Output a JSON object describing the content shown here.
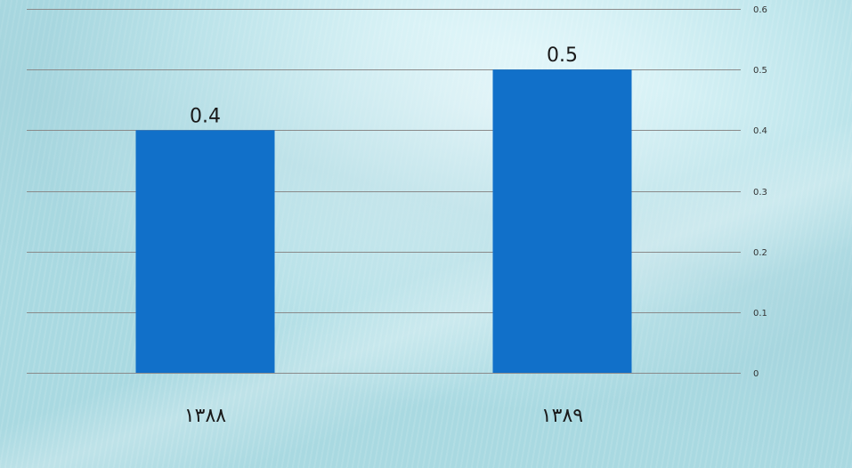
{
  "chart_data": {
    "type": "bar",
    "categories": [
      "۱۳۸۸",
      "۱۳۸۹"
    ],
    "values": [
      0.4,
      0.5
    ],
    "data_labels": [
      "0.4",
      "0.5"
    ],
    "title": "",
    "xlabel": "",
    "ylabel": "",
    "ylim": [
      0,
      0.6
    ],
    "y_ticks": [
      0,
      0.1,
      0.2,
      0.3,
      0.4,
      0.5,
      0.6
    ],
    "y_tick_labels": [
      "0",
      "0.1",
      "0.2",
      "0.3",
      "0.4",
      "0.5",
      "0.6"
    ],
    "y_axis_side": "right",
    "grid": true,
    "legend": "none",
    "bar_color": "#1170C9",
    "grid_color": "#8a8a8a"
  }
}
